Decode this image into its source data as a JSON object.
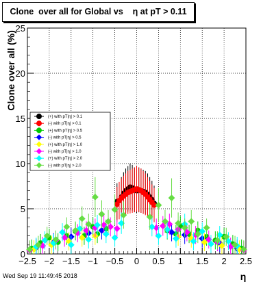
{
  "title": "Clone  over all for Global vs    η at pT > 0.11",
  "footer": "Wed Sep 19 11:49:45 2018",
  "chart_data": {
    "type": "scatter",
    "title": "Clone  over all for Global vs    η at pT > 0.11",
    "xlabel": "η",
    "ylabel": "Clone  over all (%)",
    "xlim": [
      -2.5,
      2.5
    ],
    "ylim": [
      0,
      25
    ],
    "xticks": [
      -2.5,
      -2,
      -1.5,
      -1,
      -0.5,
      0,
      0.5,
      1,
      1.5,
      2,
      2.5
    ],
    "xtick_labels": [
      "−2.5",
      "−2",
      "−1.5",
      "−1",
      "−0.5",
      "0",
      "0.5",
      "1",
      "1.5",
      "2",
      "2.5"
    ],
    "yticks": [
      0,
      5,
      10,
      15,
      20,
      25
    ],
    "ytick_labels": [
      "0",
      "5",
      "10",
      "15",
      "20",
      "25"
    ],
    "grid": true,
    "legend_position": "left",
    "series": [
      {
        "name": "(+) with pT|η| > 0.1",
        "color": "#000000",
        "marker": "circle",
        "x": [
          -0.45,
          -0.35,
          -0.3,
          -0.25,
          -0.2,
          -0.15,
          -0.1,
          -0.05,
          0,
          0.05,
          0.1,
          0.15,
          0.2,
          0.25,
          0.3,
          0.35,
          0.4
        ],
        "y": [
          5.8,
          6.3,
          6.7,
          7.0,
          7.2,
          7.4,
          7.3,
          7.1,
          7.0,
          7.1,
          7.0,
          6.9,
          6.8,
          6.6,
          6.3,
          6.0,
          5.6
        ]
      },
      {
        "name": "(-) with pT|η| > 0.1",
        "color": "#ff0000",
        "marker": "circle",
        "x": [
          -0.45,
          -0.4,
          -0.35,
          -0.3,
          -0.25,
          -0.2,
          -0.15,
          -0.1,
          -0.05,
          0,
          0.05,
          0.1,
          0.15,
          0.2,
          0.25,
          0.3,
          0.35,
          0.4
        ],
        "y": [
          5.5,
          5.9,
          6.2,
          6.4,
          6.6,
          6.8,
          6.9,
          7.0,
          7.1,
          7.2,
          7.1,
          7.0,
          6.8,
          6.6,
          6.3,
          6.0,
          5.7,
          5.4
        ]
      },
      {
        "name": "(+) with pT|η| > 0.5",
        "color": "#00cc00",
        "marker": "circle",
        "x": [
          -2.4,
          -2.2,
          -2.0,
          -1.8,
          -1.6,
          -1.4,
          -1.2,
          -1.0,
          -0.9,
          -0.7,
          0.7,
          0.9,
          1.0,
          1.2,
          1.4,
          1.6,
          1.8,
          2.0,
          2.2,
          2.4
        ],
        "y": [
          0.6,
          1.2,
          1.8,
          1.3,
          2.0,
          2.5,
          2.0,
          3.0,
          2.2,
          2.8,
          2.6,
          2.2,
          3.1,
          2.2,
          2.6,
          1.9,
          1.5,
          1.9,
          1.1,
          0.6
        ]
      },
      {
        "name": "(-) with pT|η| > 0.5",
        "color": "#0000ff",
        "marker": "diamond",
        "x": [
          -2.3,
          -1.9,
          -1.5,
          -1.1,
          -0.8,
          0.8,
          1.1,
          1.5,
          1.9,
          2.3
        ],
        "y": [
          0.7,
          1.3,
          1.9,
          2.3,
          2.6,
          2.4,
          2.1,
          1.7,
          1.2,
          0.6
        ]
      },
      {
        "name": "(+) with pT|η| > 1.0",
        "color": "#ffff00",
        "marker": "diamond",
        "x": [
          -2.35,
          -1.95,
          -1.55,
          -1.25,
          -0.95,
          0.95,
          1.25,
          1.55,
          1.95,
          2.35
        ],
        "y": [
          0.5,
          1.0,
          1.4,
          1.8,
          2.0,
          1.9,
          1.7,
          1.3,
          0.9,
          0.5
        ]
      },
      {
        "name": "(-) with pT|η| > 1.0",
        "color": "#ff00ff",
        "marker": "diamond",
        "x": [
          -2.45,
          -2.15,
          -1.85,
          -1.65,
          -1.35,
          -1.15,
          -0.95,
          -0.75,
          -0.6,
          -0.45,
          0.45,
          0.6,
          0.75,
          0.95,
          1.15,
          1.35,
          1.65,
          1.85,
          2.15,
          2.45
        ],
        "y": [
          0.4,
          0.9,
          1.5,
          1.8,
          2.3,
          2.6,
          2.9,
          3.2,
          3.0,
          2.8,
          2.9,
          3.1,
          3.3,
          2.7,
          2.4,
          2.1,
          1.6,
          1.3,
          0.8,
          0.4
        ]
      },
      {
        "name": "(+) with pT|η| > 2.0",
        "color": "#00ffff",
        "marker": "diamond",
        "x": [
          -2.3,
          -2.1,
          -1.9,
          -1.7,
          -1.5,
          -1.3,
          -1.1,
          -0.9,
          -0.7,
          -0.5,
          -0.35,
          0.35,
          0.5,
          0.7,
          0.9,
          1.1,
          1.3,
          1.5,
          1.7,
          1.9,
          2.1,
          2.3
        ],
        "y": [
          0.8,
          1.5,
          1.2,
          2.4,
          1.0,
          2.8,
          1.6,
          3.2,
          2.2,
          1.8,
          3.4,
          3.0,
          2.0,
          2.7,
          1.7,
          3.3,
          1.4,
          2.5,
          1.1,
          2.1,
          1.4,
          0.9
        ]
      },
      {
        "name": "(-) with pT|η| > 2.0",
        "color": "#66dd44",
        "marker": "diamond",
        "x": [
          -2.45,
          -2.25,
          -2.05,
          -1.85,
          -1.6,
          -1.4,
          -1.25,
          -1.1,
          -0.95,
          -0.8,
          -0.65,
          -0.5,
          -0.3,
          0.3,
          0.5,
          0.65,
          0.8,
          0.95,
          1.1,
          1.25,
          1.4,
          1.6,
          1.85,
          2.05,
          2.25,
          2.45
        ],
        "y": [
          0.5,
          1.0,
          2.0,
          1.6,
          3.0,
          2.6,
          3.9,
          3.3,
          6.3,
          4.4,
          3.6,
          4.9,
          4.3,
          4.1,
          5.4,
          3.6,
          6.2,
          3.4,
          2.9,
          3.6,
          2.2,
          2.9,
          1.5,
          1.9,
          1.0,
          0.5
        ]
      }
    ]
  }
}
